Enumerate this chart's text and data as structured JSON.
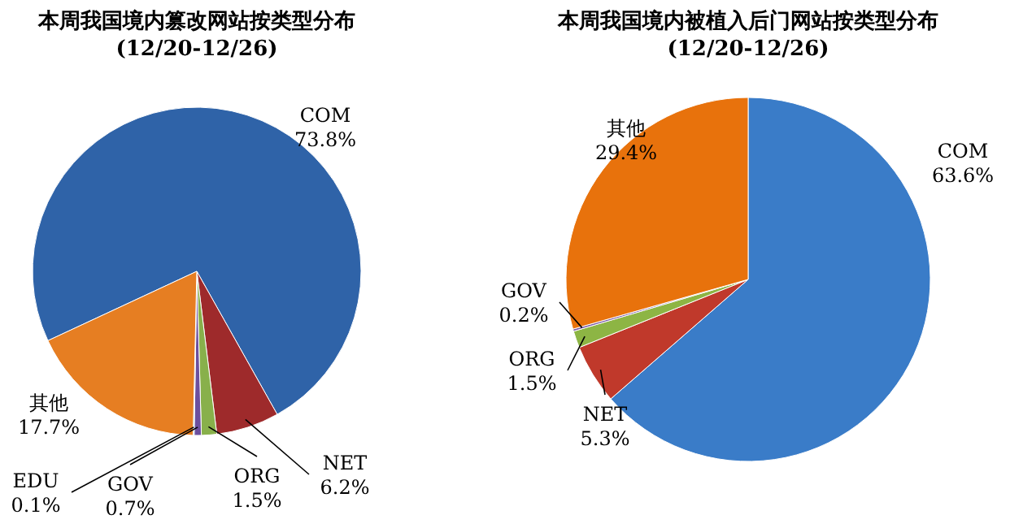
{
  "chart_data": [
    {
      "type": "pie",
      "title": "本周我国境内篡改网站按类型分布",
      "subtitle": "(12/20-12/26)",
      "categories": [
        "COM",
        "NET",
        "ORG",
        "GOV",
        "EDU",
        "其他"
      ],
      "values": [
        73.8,
        6.2,
        1.5,
        0.7,
        0.1,
        17.7
      ],
      "value_labels": [
        "73.8%",
        "6.2%",
        "1.5%",
        "0.7%",
        "0.1%",
        "17.7%"
      ],
      "colors": [
        "#2f63a8",
        "#9e2a2b",
        "#88b04b",
        "#6b4f9e",
        "#4bacc6",
        "#e67e22"
      ]
    },
    {
      "type": "pie",
      "title": "本周我国境内被植入后门网站按类型分布",
      "subtitle": "(12/20-12/26)",
      "categories": [
        "COM",
        "NET",
        "ORG",
        "GOV",
        "其他"
      ],
      "values": [
        63.6,
        5.3,
        1.5,
        0.2,
        29.4
      ],
      "value_labels": [
        "63.6%",
        "5.3%",
        "1.5%",
        "0.2%",
        "29.4%"
      ],
      "colors": [
        "#3a7cc8",
        "#c0392b",
        "#8db544",
        "#7a5aa6",
        "#e8720c"
      ]
    }
  ]
}
